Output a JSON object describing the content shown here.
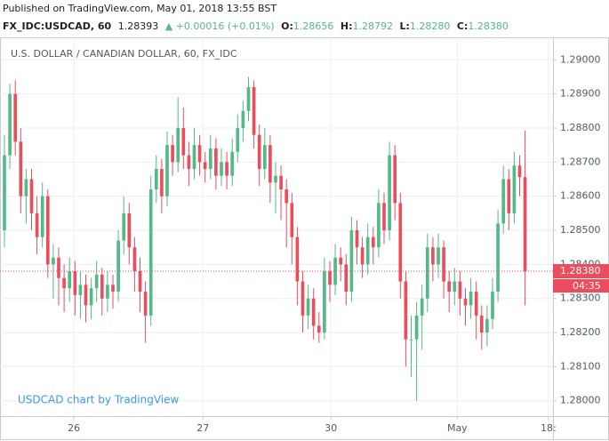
{
  "header": {
    "published": "Published on TradingView.com, May 01, 2018 13:55 BST",
    "symbol": "FX_IDC:USDCAD, 60",
    "price": "1.28393",
    "change": "▲ +0.00016 (+0.01%)",
    "o_label": "O:",
    "o": "1.28656",
    "h_label": "H:",
    "h": "1.28792",
    "l_label": "L:",
    "l": "1.28280",
    "c_label": "C:",
    "c": "1.28380"
  },
  "chart_data": {
    "type": "candlestick",
    "title": "U.S. DOLLAR / CANADIAN DOLLAR, 60, FX_IDC",
    "watermark": "USDCAD chart by TradingView",
    "up_color": "#53b987",
    "down_color": "#eb4d5c",
    "grid": true,
    "ylim": [
      1.27955,
      1.29066
    ],
    "yticks": [
      {
        "value": 1.28,
        "label": "1.28000"
      },
      {
        "value": 1.281,
        "label": "1.28100"
      },
      {
        "value": 1.282,
        "label": "1.28200"
      },
      {
        "value": 1.283,
        "label": "1.28300"
      },
      {
        "value": 1.284,
        "label": "1.28400"
      },
      {
        "value": 1.285,
        "label": "1.28500"
      },
      {
        "value": 1.286,
        "label": "1.28600"
      },
      {
        "value": 1.287,
        "label": "1.28700"
      },
      {
        "value": 1.288,
        "label": "1.28800"
      },
      {
        "value": 1.289,
        "label": "1.28900"
      },
      {
        "value": 1.29,
        "label": "1.29000"
      }
    ],
    "xlim": [
      -0.82,
      101.15
    ],
    "xticks": [
      {
        "value": 12.8,
        "label": "26"
      },
      {
        "value": 36.6,
        "label": "27"
      },
      {
        "value": 60.2,
        "label": "30"
      },
      {
        "value": 83.5,
        "label": "May"
      },
      {
        "value": 100.3,
        "label": "18:"
      }
    ],
    "price_line": {
      "value": 1.2838,
      "label": "1.28380",
      "countdown": "04:35"
    },
    "candles": [
      {
        "open": 1.285,
        "high": 1.2878,
        "low": 1.2845,
        "close": 1.2872
      },
      {
        "open": 1.2872,
        "high": 1.2893,
        "low": 1.2868,
        "close": 1.289
      },
      {
        "open": 1.289,
        "high": 1.2894,
        "low": 1.2872,
        "close": 1.2876
      },
      {
        "open": 1.2876,
        "high": 1.288,
        "low": 1.2855,
        "close": 1.286
      },
      {
        "open": 1.286,
        "high": 1.2868,
        "low": 1.2852,
        "close": 1.2865
      },
      {
        "open": 1.2865,
        "high": 1.2868,
        "low": 1.285,
        "close": 1.2855
      },
      {
        "open": 1.2855,
        "high": 1.286,
        "low": 1.2843,
        "close": 1.2848
      },
      {
        "open": 1.2848,
        "high": 1.2864,
        "low": 1.2845,
        "close": 1.286
      },
      {
        "open": 1.286,
        "high": 1.2862,
        "low": 1.2836,
        "close": 1.284
      },
      {
        "open": 1.284,
        "high": 1.2846,
        "low": 1.283,
        "close": 1.2842
      },
      {
        "open": 1.2842,
        "high": 1.2845,
        "low": 1.2828,
        "close": 1.2836
      },
      {
        "open": 1.2836,
        "high": 1.284,
        "low": 1.2826,
        "close": 1.2833
      },
      {
        "open": 1.2833,
        "high": 1.2842,
        "low": 1.2829,
        "close": 1.2838
      },
      {
        "open": 1.2838,
        "high": 1.2841,
        "low": 1.2825,
        "close": 1.2831
      },
      {
        "open": 1.2831,
        "high": 1.2838,
        "low": 1.2824,
        "close": 1.2834
      },
      {
        "open": 1.2834,
        "high": 1.2837,
        "low": 1.2823,
        "close": 1.2828
      },
      {
        "open": 1.2828,
        "high": 1.2836,
        "low": 1.2824,
        "close": 1.2833
      },
      {
        "open": 1.2833,
        "high": 1.2841,
        "low": 1.2829,
        "close": 1.2837
      },
      {
        "open": 1.2837,
        "high": 1.2839,
        "low": 1.2825,
        "close": 1.283
      },
      {
        "open": 1.283,
        "high": 1.2838,
        "low": 1.2826,
        "close": 1.2834
      },
      {
        "open": 1.2834,
        "high": 1.2837,
        "low": 1.2827,
        "close": 1.2832
      },
      {
        "open": 1.2832,
        "high": 1.285,
        "low": 1.2829,
        "close": 1.2847
      },
      {
        "open": 1.2847,
        "high": 1.286,
        "low": 1.2843,
        "close": 1.2855
      },
      {
        "open": 1.2855,
        "high": 1.2858,
        "low": 1.284,
        "close": 1.2845
      },
      {
        "open": 1.2845,
        "high": 1.2848,
        "low": 1.2832,
        "close": 1.2838
      },
      {
        "open": 1.2838,
        "high": 1.2842,
        "low": 1.2826,
        "close": 1.2832
      },
      {
        "open": 1.2832,
        "high": 1.2835,
        "low": 1.2817,
        "close": 1.2825
      },
      {
        "open": 1.2825,
        "high": 1.2866,
        "low": 1.2822,
        "close": 1.2862
      },
      {
        "open": 1.2862,
        "high": 1.2872,
        "low": 1.2858,
        "close": 1.2868
      },
      {
        "open": 1.2868,
        "high": 1.2871,
        "low": 1.2855,
        "close": 1.286
      },
      {
        "open": 1.286,
        "high": 1.2879,
        "low": 1.2857,
        "close": 1.2875
      },
      {
        "open": 1.2875,
        "high": 1.2878,
        "low": 1.2866,
        "close": 1.287
      },
      {
        "open": 1.287,
        "high": 1.2889,
        "low": 1.2867,
        "close": 1.288
      },
      {
        "open": 1.288,
        "high": 1.2886,
        "low": 1.2868,
        "close": 1.2872
      },
      {
        "open": 1.2872,
        "high": 1.2876,
        "low": 1.2863,
        "close": 1.2868
      },
      {
        "open": 1.2868,
        "high": 1.288,
        "low": 1.2865,
        "close": 1.2875
      },
      {
        "open": 1.2875,
        "high": 1.2878,
        "low": 1.2866,
        "close": 1.287
      },
      {
        "open": 1.287,
        "high": 1.2873,
        "low": 1.2864,
        "close": 1.2868
      },
      {
        "open": 1.2868,
        "high": 1.2878,
        "low": 1.2865,
        "close": 1.2874
      },
      {
        "open": 1.2874,
        "high": 1.2877,
        "low": 1.2862,
        "close": 1.2866
      },
      {
        "open": 1.2866,
        "high": 1.2874,
        "low": 1.2863,
        "close": 1.287
      },
      {
        "open": 1.287,
        "high": 1.2873,
        "low": 1.2862,
        "close": 1.2866
      },
      {
        "open": 1.2866,
        "high": 1.2877,
        "low": 1.2863,
        "close": 1.2873
      },
      {
        "open": 1.2873,
        "high": 1.2884,
        "low": 1.287,
        "close": 1.288
      },
      {
        "open": 1.288,
        "high": 1.2888,
        "low": 1.2876,
        "close": 1.2885
      },
      {
        "open": 1.2885,
        "high": 1.2895,
        "low": 1.2882,
        "close": 1.2892
      },
      {
        "open": 1.2892,
        "high": 1.2894,
        "low": 1.2874,
        "close": 1.2878
      },
      {
        "open": 1.2878,
        "high": 1.2881,
        "low": 1.2863,
        "close": 1.2868
      },
      {
        "open": 1.2868,
        "high": 1.288,
        "low": 1.2865,
        "close": 1.2875
      },
      {
        "open": 1.2875,
        "high": 1.2878,
        "low": 1.2858,
        "close": 1.2864
      },
      {
        "open": 1.2864,
        "high": 1.287,
        "low": 1.2855,
        "close": 1.2866
      },
      {
        "open": 1.2866,
        "high": 1.2869,
        "low": 1.2853,
        "close": 1.2862
      },
      {
        "open": 1.2862,
        "high": 1.2865,
        "low": 1.2845,
        "close": 1.2858
      },
      {
        "open": 1.2858,
        "high": 1.2861,
        "low": 1.284,
        "close": 1.2848
      },
      {
        "open": 1.2848,
        "high": 1.2851,
        "low": 1.2828,
        "close": 1.2835
      },
      {
        "open": 1.2835,
        "high": 1.2838,
        "low": 1.282,
        "close": 1.2825
      },
      {
        "open": 1.2825,
        "high": 1.2834,
        "low": 1.2821,
        "close": 1.283
      },
      {
        "open": 1.283,
        "high": 1.2833,
        "low": 1.2818,
        "close": 1.2822
      },
      {
        "open": 1.2822,
        "high": 1.2826,
        "low": 1.2817,
        "close": 1.282
      },
      {
        "open": 1.282,
        "high": 1.2842,
        "low": 1.2818,
        "close": 1.2838
      },
      {
        "open": 1.2838,
        "high": 1.2841,
        "low": 1.2829,
        "close": 1.2834
      },
      {
        "open": 1.2834,
        "high": 1.2846,
        "low": 1.2831,
        "close": 1.2842
      },
      {
        "open": 1.2842,
        "high": 1.2845,
        "low": 1.2835,
        "close": 1.284
      },
      {
        "open": 1.284,
        "high": 1.2843,
        "low": 1.2828,
        "close": 1.2832
      },
      {
        "open": 1.2832,
        "high": 1.2854,
        "low": 1.2829,
        "close": 1.285
      },
      {
        "open": 1.285,
        "high": 1.2853,
        "low": 1.284,
        "close": 1.2845
      },
      {
        "open": 1.2845,
        "high": 1.2848,
        "low": 1.2836,
        "close": 1.284
      },
      {
        "open": 1.284,
        "high": 1.2852,
        "low": 1.2837,
        "close": 1.2848
      },
      {
        "open": 1.2848,
        "high": 1.2851,
        "low": 1.284,
        "close": 1.2845
      },
      {
        "open": 1.2845,
        "high": 1.2862,
        "low": 1.2842,
        "close": 1.2858
      },
      {
        "open": 1.2858,
        "high": 1.2861,
        "low": 1.2846,
        "close": 1.285
      },
      {
        "open": 1.285,
        "high": 1.2876,
        "low": 1.2847,
        "close": 1.2872
      },
      {
        "open": 1.2872,
        "high": 1.2875,
        "low": 1.2853,
        "close": 1.2858
      },
      {
        "open": 1.2858,
        "high": 1.2861,
        "low": 1.283,
        "close": 1.2835
      },
      {
        "open": 1.2835,
        "high": 1.2838,
        "low": 1.281,
        "close": 1.2818
      },
      {
        "open": 1.2818,
        "high": 1.2825,
        "low": 1.2807,
        "close": 1.2818
      },
      {
        "open": 1.2818,
        "high": 1.2829,
        "low": 1.28,
        "close": 1.2825
      },
      {
        "open": 1.2825,
        "high": 1.2834,
        "low": 1.2815,
        "close": 1.283
      },
      {
        "open": 1.283,
        "high": 1.2849,
        "low": 1.2826,
        "close": 1.2845
      },
      {
        "open": 1.2845,
        "high": 1.2848,
        "low": 1.2835,
        "close": 1.284
      },
      {
        "open": 1.284,
        "high": 1.2849,
        "low": 1.2836,
        "close": 1.2845
      },
      {
        "open": 1.2845,
        "high": 1.2847,
        "low": 1.283,
        "close": 1.2835
      },
      {
        "open": 1.2835,
        "high": 1.2838,
        "low": 1.2826,
        "close": 1.2832
      },
      {
        "open": 1.2832,
        "high": 1.2839,
        "low": 1.2828,
        "close": 1.2835
      },
      {
        "open": 1.2835,
        "high": 1.2838,
        "low": 1.2825,
        "close": 1.283
      },
      {
        "open": 1.283,
        "high": 1.2833,
        "low": 1.2822,
        "close": 1.2828
      },
      {
        "open": 1.2828,
        "high": 1.2836,
        "low": 1.2824,
        "close": 1.2832
      },
      {
        "open": 1.2832,
        "high": 1.2835,
        "low": 1.2818,
        "close": 1.2825
      },
      {
        "open": 1.2825,
        "high": 1.2828,
        "low": 1.2815,
        "close": 1.282
      },
      {
        "open": 1.282,
        "high": 1.2828,
        "low": 1.2816,
        "close": 1.2824
      },
      {
        "open": 1.2824,
        "high": 1.2836,
        "low": 1.2821,
        "close": 1.2832
      },
      {
        "open": 1.2832,
        "high": 1.2856,
        "low": 1.2829,
        "close": 1.2852
      },
      {
        "open": 1.2852,
        "high": 1.2869,
        "low": 1.2849,
        "close": 1.2865
      },
      {
        "open": 1.2865,
        "high": 1.2868,
        "low": 1.285,
        "close": 1.2855
      },
      {
        "open": 1.2855,
        "high": 1.2873,
        "low": 1.2852,
        "close": 1.2869
      },
      {
        "open": 1.2869,
        "high": 1.2872,
        "low": 1.286,
        "close": 1.28656
      },
      {
        "open": 1.28656,
        "high": 1.28792,
        "low": 1.2828,
        "close": 1.2838
      }
    ]
  }
}
